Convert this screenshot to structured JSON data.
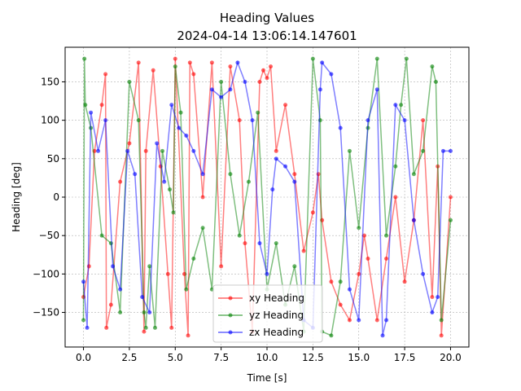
{
  "chart_data": {
    "type": "line",
    "title": "Heading Values",
    "subtitle": "2024-04-14 13:06:14.147601",
    "xlabel": "Time [s]",
    "ylabel": "Heading [deg]",
    "xlim": [
      -1.0,
      21.0
    ],
    "ylim": [
      -195,
      195
    ],
    "xticks": [
      0.0,
      2.5,
      5.0,
      7.5,
      10.0,
      12.5,
      15.0,
      17.5,
      20.0
    ],
    "xtick_labels": [
      "0.0",
      "2.5",
      "5.0",
      "7.5",
      "10.0",
      "12.5",
      "15.0",
      "17.5",
      "20.0"
    ],
    "yticks": [
      -150,
      -100,
      -50,
      0,
      50,
      100,
      150
    ],
    "ytick_labels": [
      "−150",
      "−100",
      "−50",
      "0",
      "50",
      "100",
      "150"
    ],
    "grid": true,
    "legend_position": "lower-center",
    "series": [
      {
        "name": "xy Heading",
        "color": "#ff0000",
        "x": [
          0.0,
          0.3,
          0.6,
          1.0,
          1.2,
          1.25,
          1.5,
          2.0,
          2.5,
          3.0,
          3.3,
          3.4,
          3.8,
          4.2,
          4.6,
          4.8,
          5.0,
          5.5,
          5.7,
          5.8,
          6.0,
          6.5,
          7.0,
          7.5,
          8.0,
          8.5,
          8.8,
          9.2,
          9.6,
          9.8,
          10.0,
          10.2,
          10.5,
          11.0,
          11.5,
          12.0,
          12.5,
          12.8,
          13.0,
          13.5,
          14.0,
          14.5,
          15.0,
          15.3,
          15.5,
          16.0,
          16.5,
          17.0,
          17.5,
          18.0,
          18.5,
          19.0,
          19.3,
          19.5,
          20.0
        ],
        "y": [
          -130,
          -90,
          60,
          120,
          160,
          -170,
          -140,
          20,
          70,
          175,
          -175,
          60,
          165,
          40,
          -100,
          -170,
          180,
          -100,
          -180,
          175,
          160,
          0,
          175,
          -90,
          170,
          100,
          -60,
          -175,
          150,
          165,
          155,
          170,
          60,
          120,
          30,
          -70,
          -20,
          30,
          -30,
          -110,
          -140,
          -160,
          -100,
          -50,
          -80,
          -160,
          -80,
          0,
          -110,
          -30,
          100,
          -130,
          40,
          -180,
          0
        ]
      },
      {
        "name": "yz Heading",
        "color": "#008000",
        "x": [
          0.0,
          0.05,
          0.1,
          0.4,
          1.0,
          1.5,
          2.0,
          2.5,
          3.0,
          3.3,
          3.4,
          3.6,
          3.9,
          4.3,
          4.7,
          4.9,
          5.0,
          5.3,
          5.6,
          6.0,
          6.5,
          7.0,
          7.5,
          8.0,
          8.5,
          9.0,
          9.5,
          10.0,
          10.5,
          11.0,
          11.5,
          12.0,
          12.5,
          12.9,
          13.0,
          13.5,
          14.0,
          14.5,
          15.0,
          15.5,
          16.0,
          16.5,
          17.0,
          17.3,
          17.6,
          18.0,
          18.5,
          19.0,
          19.2,
          19.5,
          20.0
        ],
        "y": [
          -160,
          180,
          120,
          90,
          -50,
          -60,
          -150,
          150,
          100,
          -150,
          -170,
          -90,
          -170,
          60,
          10,
          -20,
          170,
          110,
          -120,
          -80,
          -40,
          -120,
          150,
          30,
          -50,
          20,
          110,
          -120,
          -60,
          -140,
          -90,
          -175,
          180,
          100,
          -175,
          -180,
          -110,
          60,
          -40,
          90,
          180,
          -50,
          40,
          120,
          180,
          30,
          60,
          170,
          150,
          -160,
          -30
        ]
      },
      {
        "name": "zx Heading",
        "color": "#0000ff",
        "x": [
          0.0,
          0.2,
          0.4,
          0.8,
          1.2,
          1.6,
          2.0,
          2.4,
          2.8,
          3.2,
          3.6,
          4.0,
          4.4,
          4.8,
          5.2,
          5.6,
          6.0,
          6.5,
          7.0,
          7.5,
          8.0,
          8.4,
          8.8,
          9.2,
          9.6,
          10.0,
          10.3,
          10.5,
          11.0,
          11.5,
          12.0,
          12.5,
          12.9,
          13.0,
          13.5,
          14.0,
          14.5,
          15.0,
          15.5,
          16.0,
          16.3,
          16.5,
          17.0,
          17.5,
          18.0,
          18.5,
          19.0,
          19.3,
          19.6,
          20.0
        ],
        "y": [
          -110,
          -170,
          110,
          60,
          100,
          -90,
          -120,
          60,
          30,
          -130,
          -150,
          70,
          20,
          120,
          90,
          80,
          60,
          30,
          140,
          130,
          140,
          175,
          150,
          100,
          -60,
          -100,
          10,
          50,
          40,
          20,
          -160,
          -170,
          140,
          175,
          160,
          90,
          -120,
          -160,
          100,
          140,
          -180,
          -160,
          120,
          100,
          -30,
          -100,
          -150,
          -130,
          60,
          60
        ]
      }
    ]
  }
}
